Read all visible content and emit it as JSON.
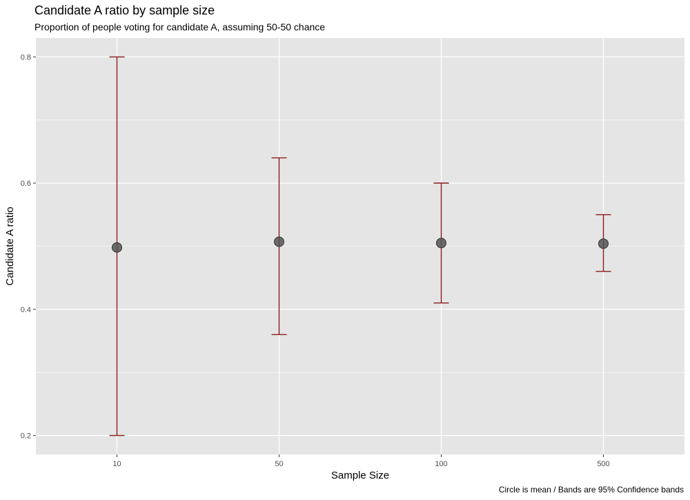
{
  "chart_data": {
    "type": "scatter",
    "title": "Candidate A ratio by sample size",
    "subtitle": "Proportion of people voting for candidate A, assuming 50-50 chance",
    "caption": "Circle is mean / Bands are 95% Confidence bands",
    "xlabel": "Sample Size",
    "ylabel": "Candidate A ratio",
    "categories": [
      "10",
      "50",
      "100",
      "500"
    ],
    "mean": [
      0.498,
      0.507,
      0.505,
      0.504
    ],
    "ci_lower": [
      0.2,
      0.36,
      0.41,
      0.46
    ],
    "ci_upper": [
      0.8,
      0.64,
      0.6,
      0.55
    ],
    "ylim": [
      0.17,
      0.83
    ],
    "yticks": [
      0.2,
      0.4,
      0.6,
      0.8
    ],
    "ytick_labels": [
      "0.2",
      "0.4",
      "0.6",
      "0.8"
    ],
    "grid": true,
    "colors": {
      "panel": "#e5e5e5",
      "grid": "#ffffff",
      "errorbar": "#8b1a1a",
      "point": "#555555"
    }
  }
}
